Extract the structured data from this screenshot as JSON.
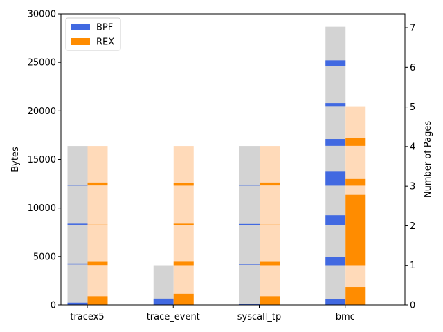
{
  "chart_data": {
    "type": "bar",
    "categories": [
      "tracex5",
      "trace_event",
      "syscall_tp",
      "bmc"
    ],
    "ylabel": "Bytes",
    "y2label": "Number of Pages",
    "ylim": [
      0,
      30000
    ],
    "y2lim": [
      0,
      7.35
    ],
    "yticks": [
      0,
      5000,
      10000,
      15000,
      20000,
      25000,
      30000
    ],
    "y2ticks": [
      0,
      1,
      2,
      3,
      4,
      5,
      6,
      7
    ],
    "legend": {
      "position": "top-left",
      "entries": [
        {
          "name": "BPF",
          "color": "#4169E1"
        },
        {
          "name": "REX",
          "color": "#FF8C00"
        }
      ]
    },
    "series": [
      {
        "name": "BPF",
        "color": "#4169E1",
        "page_bg_color": "#D3D3D3",
        "pages": [
          4,
          1,
          4,
          7
        ],
        "segments": [
          [
            [
              0,
              230
            ],
            [
              4180,
              4290
            ],
            [
              8270,
              8380
            ],
            [
              12300,
              12380
            ]
          ],
          [
            [
              0,
              650
            ]
          ],
          [
            [
              0,
              130
            ],
            [
              4170,
              4230
            ],
            [
              8260,
              8350
            ],
            [
              12300,
              12400
            ]
          ],
          [
            [
              0,
              600
            ],
            [
              4100,
              4950
            ],
            [
              8200,
              9250
            ],
            [
              12300,
              13800
            ],
            [
              16400,
              17100
            ],
            [
              20500,
              20800
            ],
            [
              24600,
              25200
            ]
          ]
        ]
      },
      {
        "name": "REX",
        "color": "#FF8C00",
        "page_bg_color": "#FFDAB9",
        "pages": [
          4,
          4,
          4,
          5
        ],
        "segments": [
          [
            [
              0,
              900
            ],
            [
              4120,
              4450
            ],
            [
              8220,
              8280
            ],
            [
              12320,
              12620
            ]
          ],
          [
            [
              0,
              1150
            ],
            [
              4100,
              4460
            ],
            [
              8200,
              8380
            ],
            [
              12300,
              12600
            ]
          ],
          [
            [
              0,
              900
            ],
            [
              4100,
              4450
            ],
            [
              8220,
              8280
            ],
            [
              12320,
              12620
            ]
          ],
          [
            [
              0,
              1850
            ],
            [
              4100,
              11350
            ],
            [
              12300,
              12980
            ],
            [
              16400,
              17200
            ]
          ]
        ]
      }
    ]
  }
}
